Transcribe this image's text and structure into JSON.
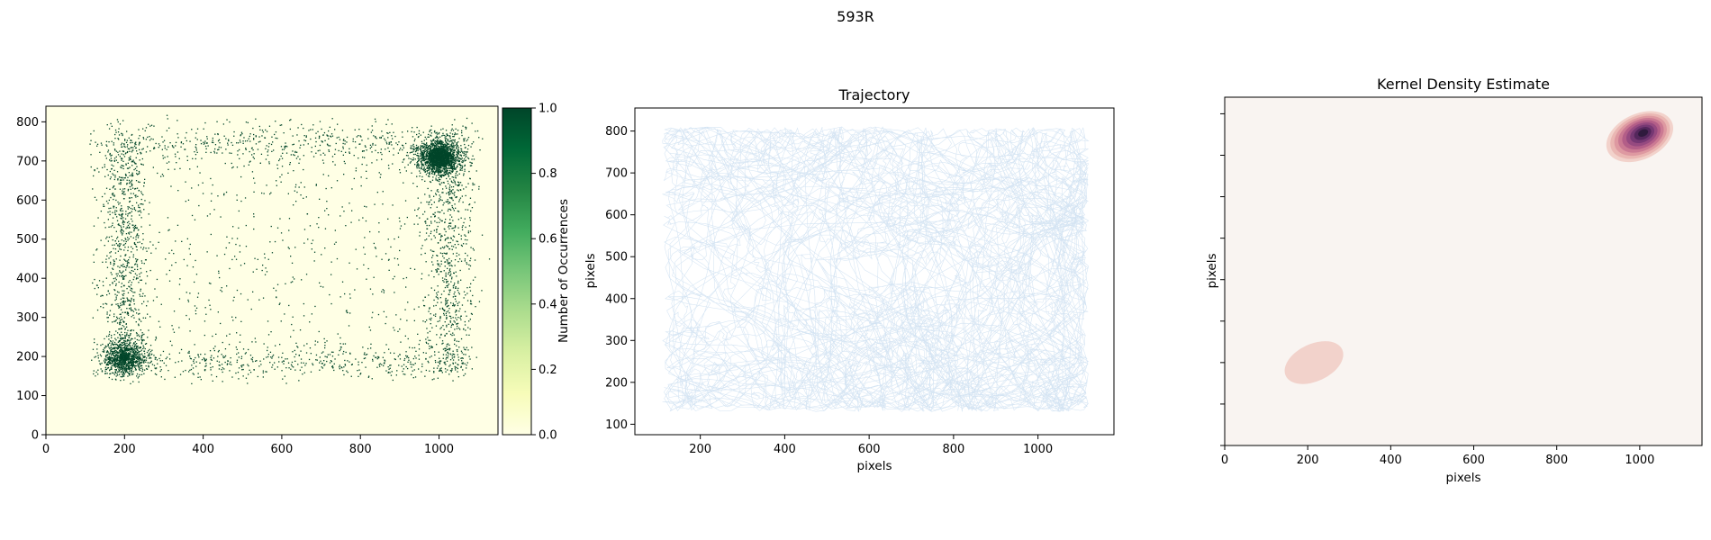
{
  "figure": {
    "suptitle": "593R"
  },
  "chart_data": [
    {
      "type": "heatmap",
      "title": "",
      "xlabel": "",
      "ylabel": "",
      "xlim": [
        0,
        1150
      ],
      "ylim": [
        0,
        840
      ],
      "xticks": [
        0,
        200,
        400,
        600,
        800,
        1000
      ],
      "yticks": [
        0,
        100,
        200,
        300,
        400,
        500,
        600,
        700,
        800
      ],
      "colormap": [
        "#ffffe5",
        "#f7fcb9",
        "#d9f0a3",
        "#addd8e",
        "#78c679",
        "#41ab5d",
        "#238443",
        "#006837",
        "#004529"
      ],
      "background_color": "#ffffe5",
      "point_color": "#004529",
      "colorbar": {
        "label": "Number of Occurrences",
        "ticks": [
          "0.0",
          "0.2",
          "0.4",
          "0.6",
          "0.8",
          "1.0"
        ],
        "range": [
          0,
          1
        ]
      },
      "arena": {
        "x_min": 110,
        "x_max": 1110,
        "y_min": 130,
        "y_max": 810
      },
      "hotspots": [
        {
          "x": 1000,
          "y": 710,
          "weight": 0.35
        },
        {
          "x": 200,
          "y": 200,
          "weight": 0.2
        }
      ]
    },
    {
      "type": "line",
      "title": "Trajectory",
      "xlabel": "pixels",
      "ylabel": "pixels",
      "xlim": [
        45,
        1180
      ],
      "ylim": [
        75,
        855
      ],
      "xticks": [
        200,
        400,
        600,
        800,
        1000
      ],
      "yticks": [
        100,
        200,
        300,
        400,
        500,
        600,
        700,
        800
      ],
      "line_color": "#c6dbef",
      "arena": {
        "x_min": 110,
        "x_max": 1120,
        "y_min": 130,
        "y_max": 810
      }
    },
    {
      "type": "heatmap",
      "title": "Kernel Density Estimate",
      "xlabel": "pixels",
      "ylabel": "pixels",
      "xlim": [
        0,
        1150
      ],
      "ylim": [
        0,
        840
      ],
      "xticks": [
        0,
        200,
        400,
        600,
        800,
        1000
      ],
      "yticks_unlabeled": [
        0,
        100,
        200,
        300,
        400,
        500,
        600,
        700,
        800
      ],
      "background_color": "#f9f4f1",
      "contour_colors": [
        "#f2d2cb",
        "#eab7b3",
        "#de99a1",
        "#cb7a93",
        "#b35e88",
        "#964a80",
        "#763873",
        "#54275c",
        "#2f1a3d"
      ],
      "peaks": [
        {
          "x": 1000,
          "y": 745,
          "sx": 85,
          "sy": 55,
          "angle_deg": 25,
          "levels": 9
        },
        {
          "x": 215,
          "y": 200,
          "sx": 75,
          "sy": 45,
          "angle_deg": 25,
          "levels": 1
        }
      ]
    }
  ]
}
